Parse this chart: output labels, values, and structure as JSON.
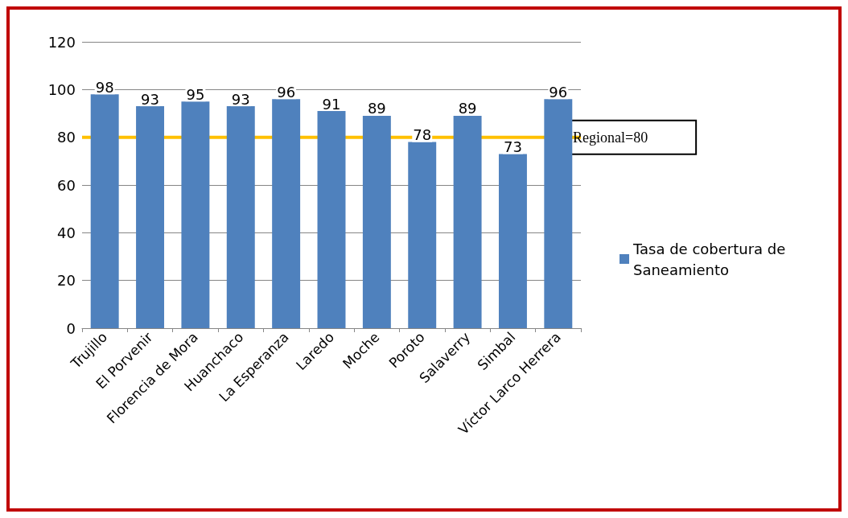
{
  "chart_data": {
    "type": "bar",
    "categories": [
      "Trujillo",
      "El Porvenir",
      "Florencia de Mora",
      "Huanchaco",
      "La Esperanza",
      "Laredo",
      "Moche",
      "Poroto",
      "Salaverry",
      "Simbal",
      "Víctor Larco Herrera"
    ],
    "series": [
      {
        "name": "Tasa de cobertura de Saneamiento",
        "color": "#4f81bd",
        "values": [
          98,
          93,
          95,
          93,
          96,
          91,
          89,
          78,
          89,
          73,
          96
        ]
      }
    ],
    "ylim": [
      0,
      120
    ],
    "yticks": [
      0,
      20,
      40,
      60,
      80,
      100,
      120
    ],
    "grid": "y",
    "legend": "right",
    "data_labels": true,
    "ref_lines": [
      {
        "axis": "y",
        "value": 80,
        "label": "Regional=80",
        "color": "#ffc000"
      }
    ]
  }
}
